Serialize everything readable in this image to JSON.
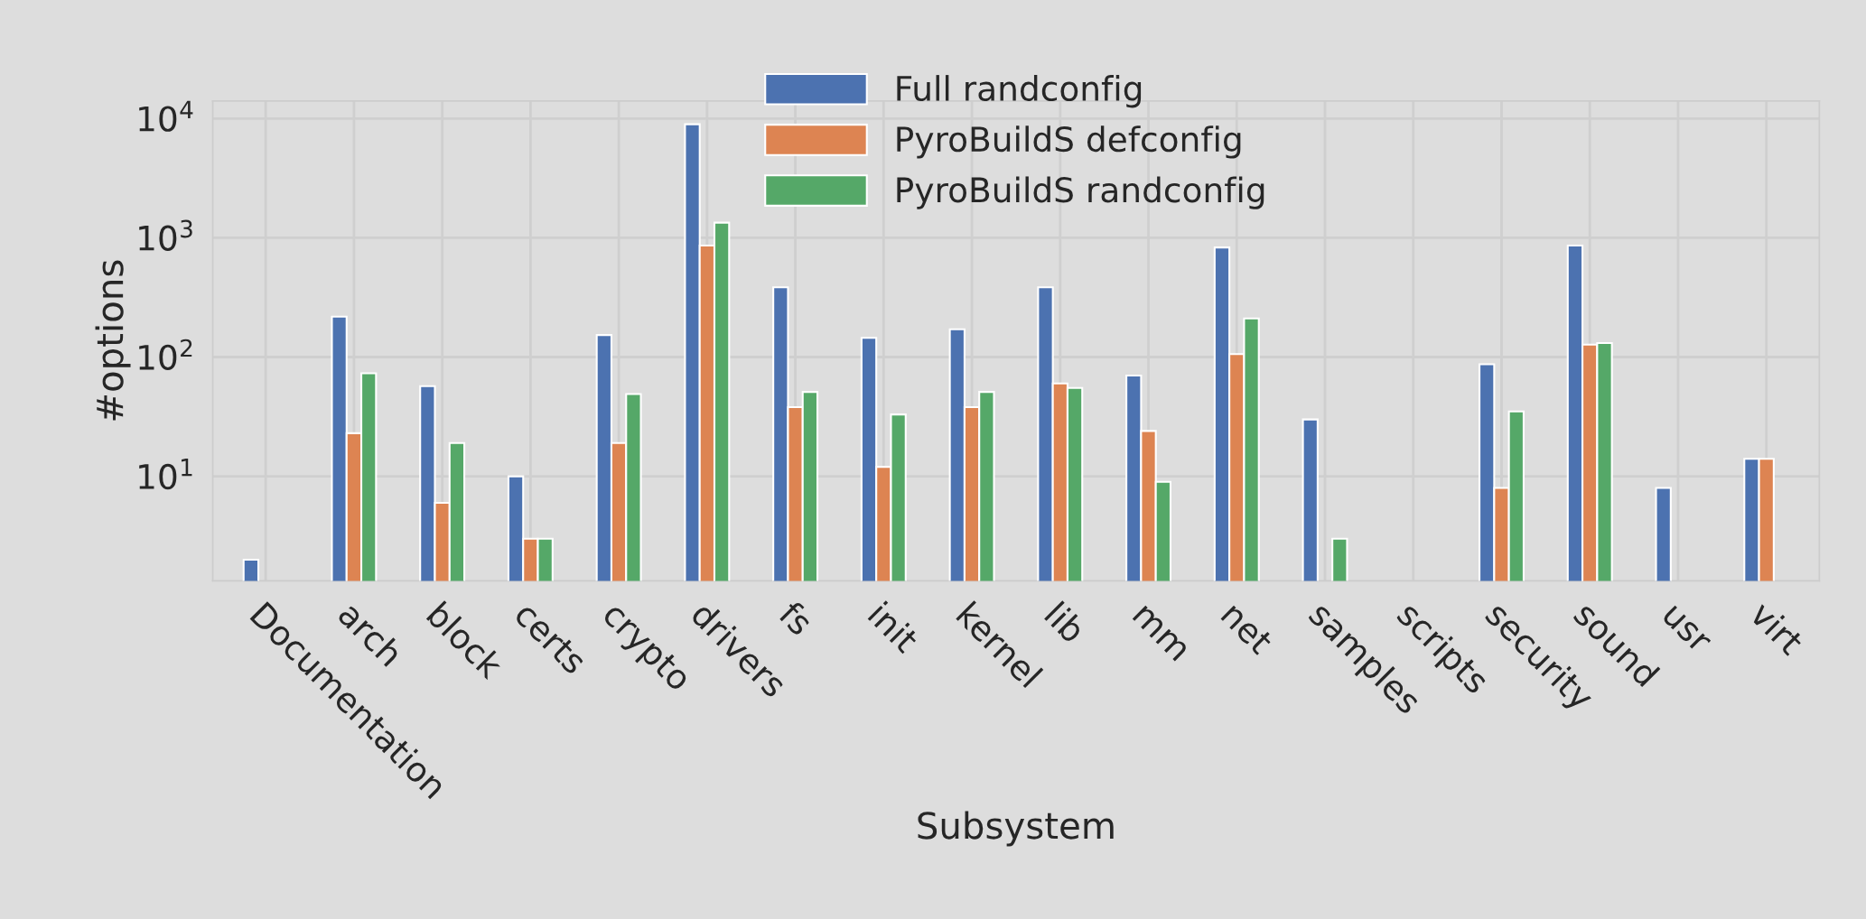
{
  "chart_data": {
    "type": "bar",
    "xlabel": "Subsystem",
    "ylabel": "#options",
    "categories": [
      "Documentation",
      "arch",
      "block",
      "certs",
      "crypto",
      "drivers",
      "fs",
      "init",
      "kernel",
      "lib",
      "mm",
      "net",
      "samples",
      "scripts",
      "security",
      "sound",
      "usr",
      "virt"
    ],
    "series": [
      {
        "name": "Full randconfig",
        "color": "#4c72b0",
        "values": [
          2,
          218,
          57,
          10,
          153,
          8950,
          384,
          145,
          171,
          384,
          70,
          830,
          30,
          null,
          87,
          860,
          8,
          14
        ]
      },
      {
        "name": "PyroBuildS defconfig",
        "color": "#dd8452",
        "values": [
          null,
          23,
          6,
          3,
          19,
          860,
          38,
          12,
          38,
          60,
          24,
          106,
          null,
          null,
          8,
          127,
          null,
          14
        ]
      },
      {
        "name": "PyroBuildS randconfig",
        "color": "#55a868",
        "values": [
          null,
          73,
          19,
          3,
          49,
          1340,
          51,
          33,
          51,
          55,
          9,
          211,
          3,
          null,
          35,
          131,
          null,
          null
        ]
      }
    ],
    "log": "y",
    "ylim": [
      1.33,
      14000
    ],
    "yticks": [
      {
        "value": 10,
        "label": "10$^{1}$"
      },
      {
        "value": 100,
        "label": "10$^{2}$"
      },
      {
        "value": 1000,
        "label": "10$^{3}$"
      },
      {
        "value": 10000,
        "label": "10$^{4}$"
      }
    ],
    "grid": true,
    "legend": "top"
  }
}
